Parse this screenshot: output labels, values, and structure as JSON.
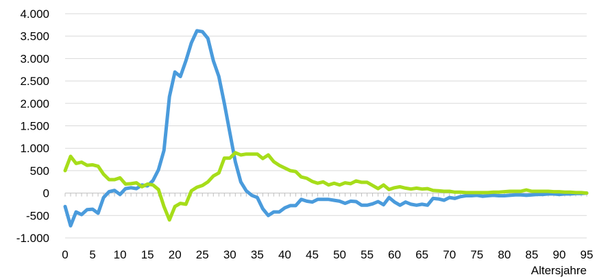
{
  "chart_data": {
    "type": "line",
    "title": "",
    "xlabel": "Altersjahre",
    "ylabel": "",
    "xlim": [
      0,
      95
    ],
    "ylim": [
      -1000,
      4000
    ],
    "y_ticks": [
      -1000,
      -500,
      0,
      500,
      1000,
      1500,
      2000,
      2500,
      3000,
      3500,
      4000
    ],
    "y_tick_labels": [
      "-1.000",
      "-500",
      "0",
      "500",
      "1.000",
      "1.500",
      "2.000",
      "2.500",
      "3.000",
      "3.500",
      "4.000"
    ],
    "x_ticks": [
      0,
      5,
      10,
      15,
      20,
      25,
      30,
      35,
      40,
      45,
      50,
      55,
      60,
      65,
      70,
      75,
      80,
      85,
      90,
      95
    ],
    "x_tick_labels": [
      "0",
      "5",
      "10",
      "15",
      "20",
      "25",
      "30",
      "35",
      "40",
      "45",
      "50",
      "55",
      "60",
      "65",
      "70",
      "75",
      "80",
      "85",
      "90",
      "95"
    ],
    "grid": "horizontal",
    "legend": "none",
    "series": [
      {
        "color": "#4a9bdc",
        "x": [
          0,
          1,
          2,
          3,
          4,
          5,
          6,
          7,
          8,
          9,
          10,
          11,
          12,
          13,
          14,
          15,
          16,
          17,
          18,
          19,
          20,
          21,
          22,
          23,
          24,
          25,
          26,
          27,
          28,
          29,
          30,
          31,
          32,
          33,
          34,
          35,
          36,
          37,
          38,
          39,
          40,
          41,
          42,
          43,
          44,
          45,
          46,
          47,
          48,
          49,
          50,
          51,
          52,
          53,
          54,
          55,
          56,
          57,
          58,
          59,
          60,
          61,
          62,
          63,
          64,
          65,
          66,
          67,
          68,
          69,
          70,
          71,
          72,
          73,
          74,
          75,
          76,
          77,
          78,
          79,
          80,
          81,
          82,
          83,
          84,
          85,
          86,
          87,
          88,
          89,
          90,
          91,
          92,
          93,
          94,
          95
        ],
        "values": [
          -300,
          -730,
          -420,
          -480,
          -370,
          -360,
          -450,
          -100,
          30,
          60,
          -30,
          100,
          120,
          100,
          180,
          160,
          280,
          520,
          950,
          2150,
          2700,
          2600,
          2950,
          3350,
          3620,
          3600,
          3450,
          2950,
          2600,
          2000,
          1350,
          700,
          250,
          50,
          -50,
          -100,
          -350,
          -500,
          -420,
          -420,
          -330,
          -280,
          -280,
          -140,
          -180,
          -200,
          -140,
          -140,
          -140,
          -160,
          -180,
          -230,
          -180,
          -190,
          -270,
          -270,
          -240,
          -190,
          -260,
          -100,
          -200,
          -270,
          -200,
          -250,
          -270,
          -250,
          -270,
          -120,
          -130,
          -160,
          -100,
          -120,
          -80,
          -60,
          -60,
          -50,
          -70,
          -60,
          -50,
          -60,
          -60,
          -50,
          -40,
          -40,
          -50,
          -40,
          -30,
          -30,
          -20,
          -20,
          -30,
          -20,
          -20,
          -10,
          -10,
          0
        ]
      },
      {
        "color": "#a6dd1a",
        "x": [
          0,
          1,
          2,
          3,
          4,
          5,
          6,
          7,
          8,
          9,
          10,
          11,
          12,
          13,
          14,
          15,
          16,
          17,
          18,
          19,
          20,
          21,
          22,
          23,
          24,
          25,
          26,
          27,
          28,
          29,
          30,
          31,
          32,
          33,
          34,
          35,
          36,
          37,
          38,
          39,
          40,
          41,
          42,
          43,
          44,
          45,
          46,
          47,
          48,
          49,
          50,
          51,
          52,
          53,
          54,
          55,
          56,
          57,
          58,
          59,
          60,
          61,
          62,
          63,
          64,
          65,
          66,
          67,
          68,
          69,
          70,
          71,
          72,
          73,
          74,
          75,
          76,
          77,
          78,
          79,
          80,
          81,
          82,
          83,
          84,
          85,
          86,
          87,
          88,
          89,
          90,
          91,
          92,
          93,
          94,
          95
        ],
        "values": [
          500,
          820,
          660,
          690,
          620,
          630,
          600,
          420,
          300,
          300,
          340,
          200,
          210,
          230,
          140,
          200,
          180,
          80,
          -300,
          -600,
          -300,
          -230,
          -250,
          50,
          130,
          170,
          250,
          380,
          450,
          780,
          780,
          900,
          850,
          870,
          870,
          870,
          770,
          850,
          700,
          620,
          560,
          500,
          480,
          360,
          330,
          260,
          220,
          250,
          180,
          220,
          180,
          230,
          210,
          270,
          240,
          240,
          170,
          100,
          180,
          80,
          120,
          140,
          110,
          90,
          110,
          90,
          100,
          60,
          50,
          40,
          40,
          20,
          20,
          10,
          10,
          10,
          10,
          10,
          20,
          20,
          30,
          40,
          40,
          40,
          70,
          40,
          40,
          40,
          40,
          30,
          30,
          20,
          20,
          10,
          10,
          0
        ]
      }
    ]
  }
}
